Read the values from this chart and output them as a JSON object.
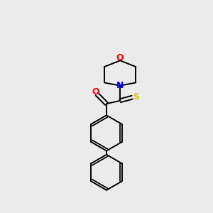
{
  "background_color": "#ebebeb",
  "atom_colors": {
    "O": "#ff0000",
    "N": "#0000ff",
    "S": "#cccc00",
    "C": "#000000"
  },
  "bond_color": "#000000",
  "figsize": [
    3.0,
    3.0
  ],
  "dpi": 100
}
